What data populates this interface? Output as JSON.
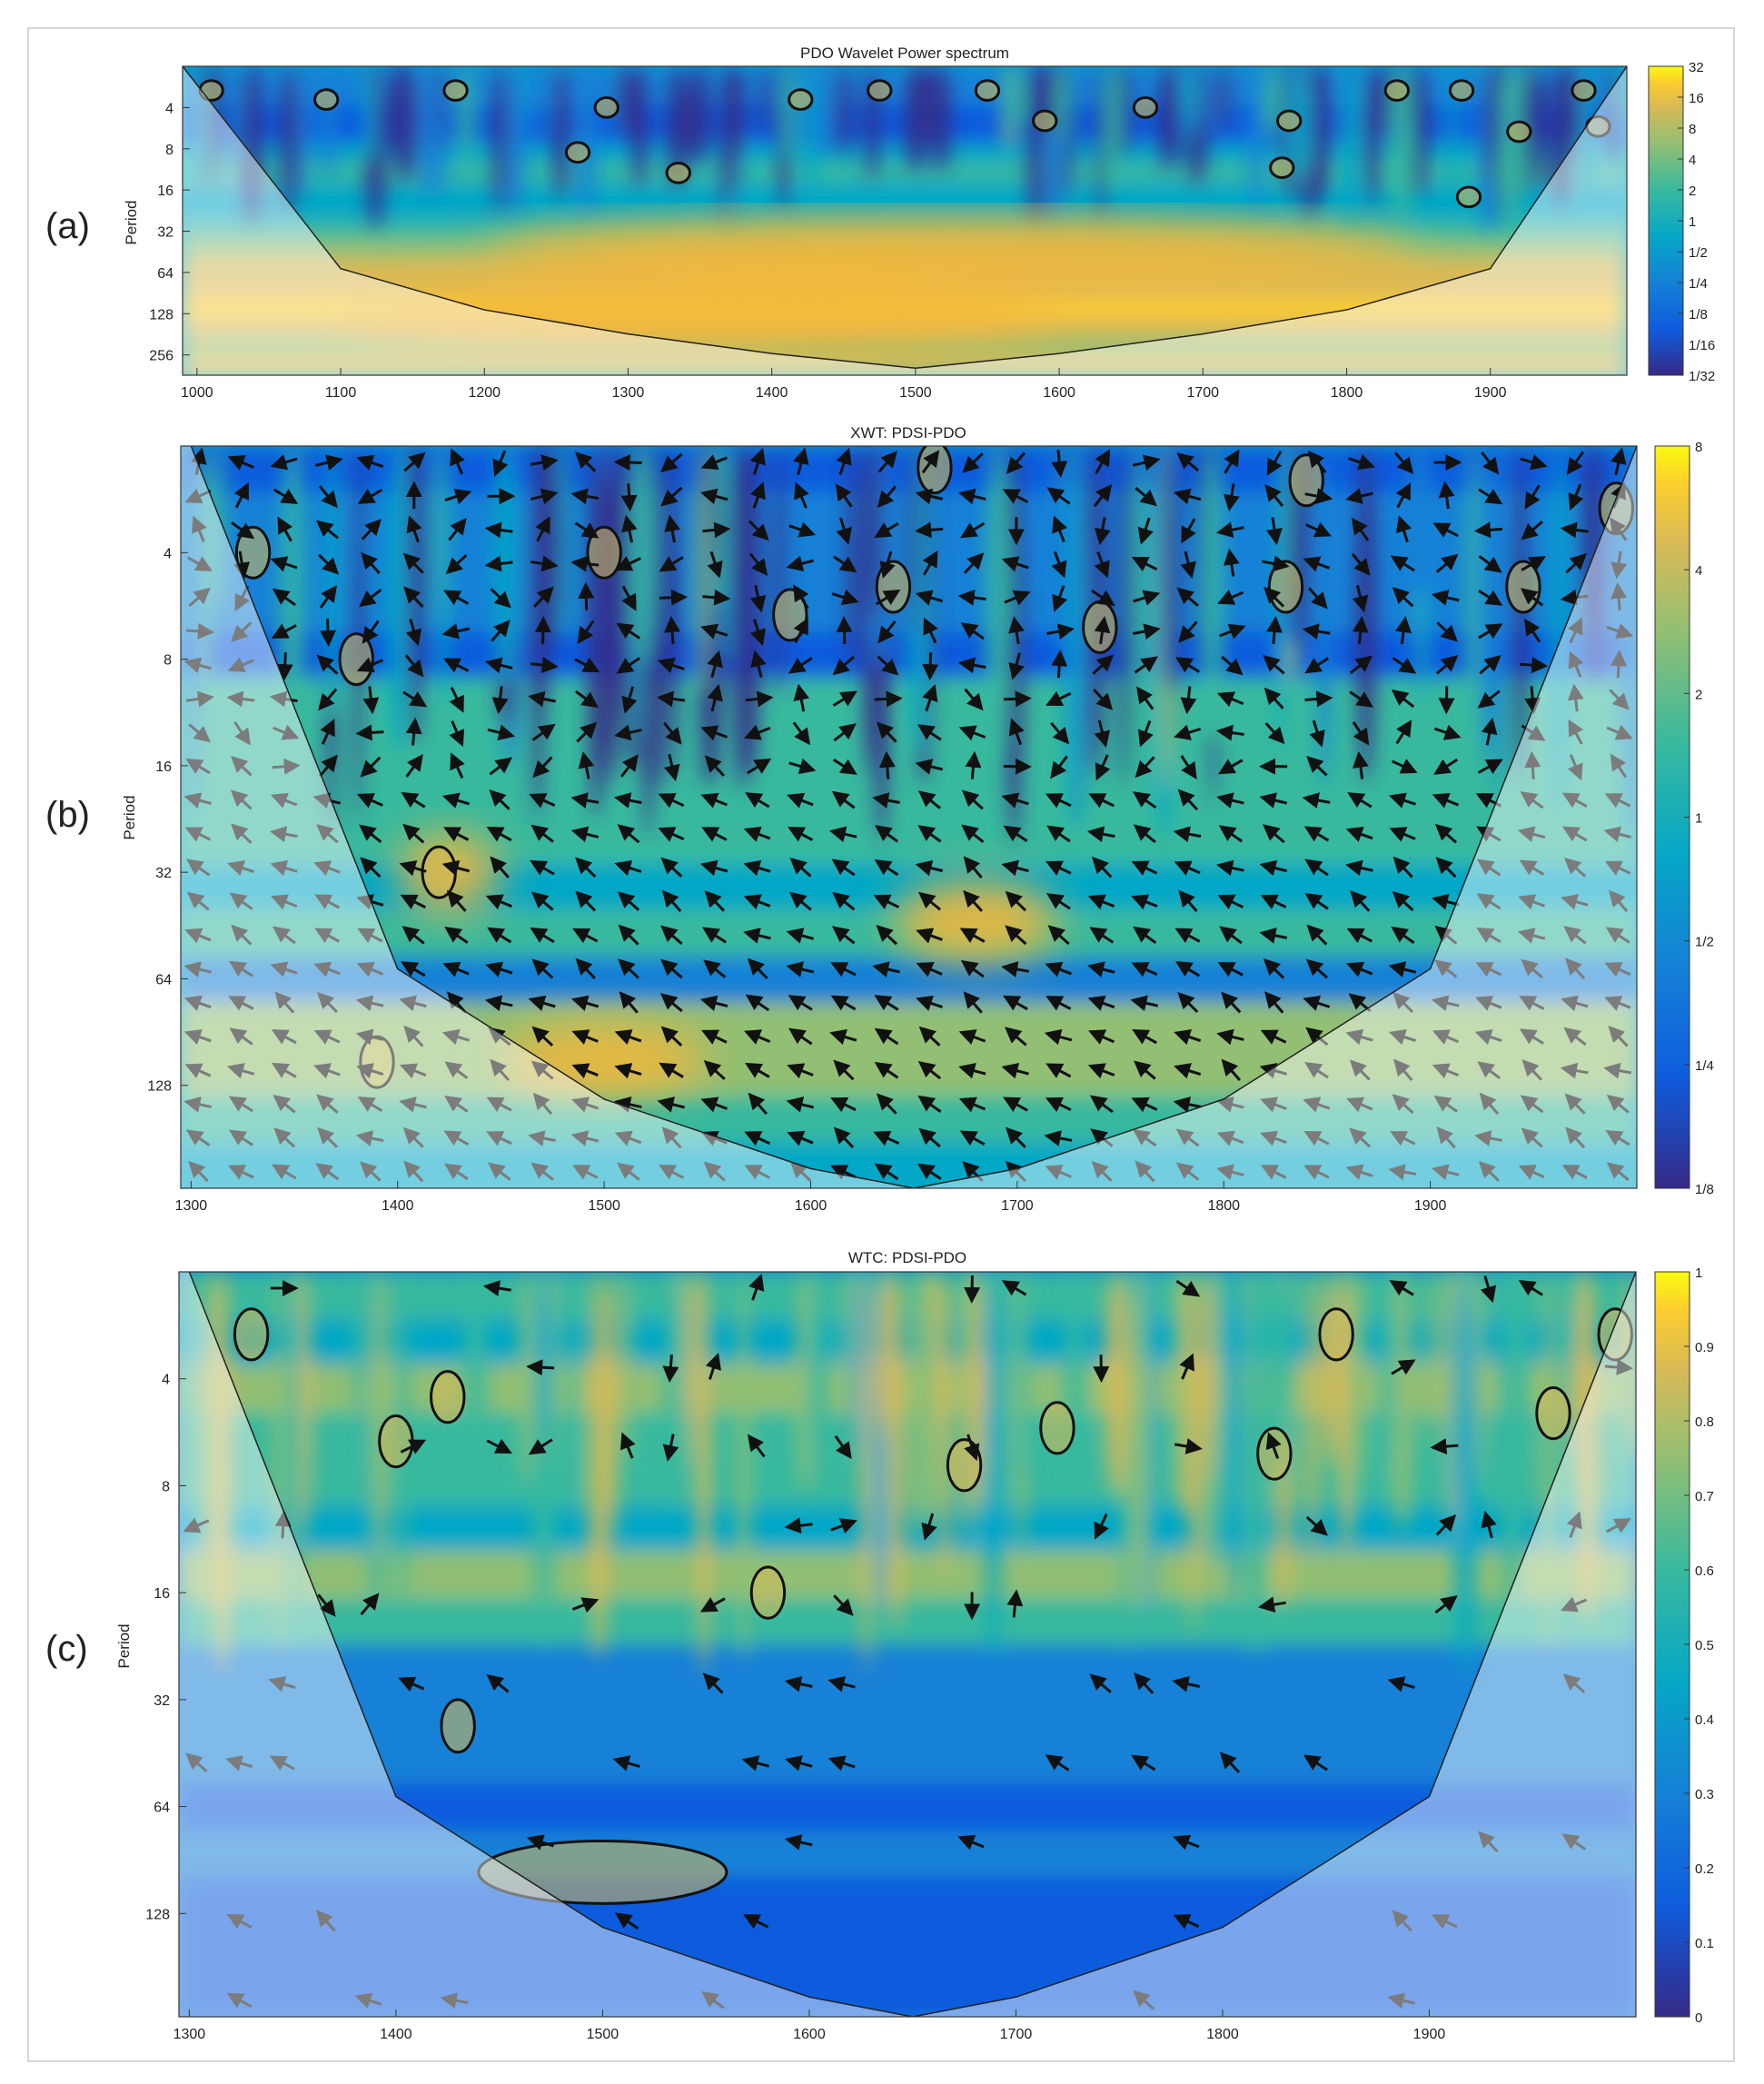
{
  "chart_data": [
    {
      "type": "heatmap",
      "panel_label": "(a)",
      "title": "PDO Wavelet Power spectrum",
      "xlabel": "",
      "ylabel": "Period",
      "xlim": [
        990,
        1995
      ],
      "xticks": [
        1000,
        1100,
        1200,
        1300,
        1400,
        1500,
        1600,
        1700,
        1800,
        1900
      ],
      "ylim": [
        2,
        360
      ],
      "yscale": "log2",
      "yticks": [
        4,
        8,
        16,
        32,
        64,
        128,
        256
      ],
      "colorbar": {
        "colormap": "parula",
        "scale": "log2",
        "ticks": [
          "32",
          "16",
          "8",
          "4",
          "2",
          "1",
          "1/2",
          "1/4",
          "1/8",
          "1/16",
          "1/32"
        ]
      },
      "cone_of_influence": {
        "x": [
          990,
          1100,
          1200,
          1300,
          1400,
          1500,
          1600,
          1700,
          1800,
          1900,
          1995
        ],
        "period": [
          2,
          60,
          120,
          180,
          250,
          320,
          250,
          180,
          120,
          60,
          2
        ]
      },
      "high_power_bands": [
        {
          "x": [
            1100,
            1600
          ],
          "period": [
            90,
            200
          ],
          "level": "8"
        },
        {
          "x": [
            1200,
            1850
          ],
          "period": [
            28,
            70
          ],
          "level": "4"
        }
      ],
      "significant_regions": [
        {
          "x": 1010,
          "period": 3
        },
        {
          "x": 1090,
          "period": 3.5
        },
        {
          "x": 1180,
          "period": 3
        },
        {
          "x": 1265,
          "period": 8.5
        },
        {
          "x": 1285,
          "period": 4
        },
        {
          "x": 1335,
          "period": 12
        },
        {
          "x": 1420,
          "period": 3.5
        },
        {
          "x": 1475,
          "period": 3
        },
        {
          "x": 1550,
          "period": 3
        },
        {
          "x": 1590,
          "period": 5
        },
        {
          "x": 1660,
          "period": 4
        },
        {
          "x": 1760,
          "period": 5
        },
        {
          "x": 1835,
          "period": 3
        },
        {
          "x": 1880,
          "period": 3
        },
        {
          "x": 1920,
          "period": 6
        },
        {
          "x": 1965,
          "period": 3
        },
        {
          "x": 1975,
          "period": 5.5
        },
        {
          "x": 1885,
          "period": 18
        },
        {
          "x": 1755,
          "period": 11
        }
      ]
    },
    {
      "type": "heatmap",
      "panel_label": "(b)",
      "title": "XWT: PDSI-PDO",
      "xlabel": "",
      "ylabel": "Period",
      "xlim": [
        1295,
        2000
      ],
      "xticks": [
        1300,
        1400,
        1500,
        1600,
        1700,
        1800,
        1900
      ],
      "ylim": [
        2,
        250
      ],
      "yscale": "log2",
      "yticks": [
        4,
        8,
        16,
        32,
        64,
        128
      ],
      "colorbar": {
        "colormap": "parula",
        "scale": "log2",
        "ticks": [
          "8",
          "4",
          "2",
          "1",
          "1/2",
          "1/4",
          "1/8"
        ]
      },
      "cone_of_influence": {
        "x": [
          1300,
          1400,
          1500,
          1600,
          1650,
          1700,
          1800,
          1900,
          2000
        ],
        "period": [
          2,
          60,
          140,
          220,
          250,
          220,
          140,
          60,
          2
        ]
      },
      "high_power_regions": [
        {
          "x": [
            1400,
            1450
          ],
          "period": [
            26,
            40
          ],
          "level": "4"
        },
        {
          "x": [
            1450,
            1550
          ],
          "period": [
            90,
            130
          ],
          "level": "4"
        },
        {
          "x": [
            1640,
            1720
          ],
          "period": [
            35,
            55
          ],
          "level": "4"
        }
      ],
      "significant_regions": [
        {
          "x": 1380,
          "period": 8
        },
        {
          "x": 1420,
          "period": 32
        },
        {
          "x": 1390,
          "period": 110
        },
        {
          "x": 1330,
          "period": 4
        },
        {
          "x": 1500,
          "period": 4
        },
        {
          "x": 1590,
          "period": 6
        },
        {
          "x": 1640,
          "period": 5
        },
        {
          "x": 1740,
          "period": 6.5
        },
        {
          "x": 1830,
          "period": 5
        },
        {
          "x": 1945,
          "period": 5
        },
        {
          "x": 1990,
          "period": 3
        },
        {
          "x": 1660,
          "period": 2.3
        },
        {
          "x": 1840,
          "period": 2.5
        }
      ],
      "phase_arrows": "dominant left/down-left (anti-phase) at periods 32-128; mixed direction at short periods"
    },
    {
      "type": "heatmap",
      "panel_label": "(c)",
      "title": "WTC: PDSI-PDO",
      "xlabel": "",
      "ylabel": "Period",
      "xlim": [
        1295,
        2000
      ],
      "xticks": [
        1300,
        1400,
        1500,
        1600,
        1700,
        1800,
        1900
      ],
      "ylim": [
        2,
        250
      ],
      "yscale": "log2",
      "yticks": [
        4,
        8,
        16,
        32,
        64,
        128
      ],
      "colorbar": {
        "colormap": "parula",
        "scale": "linear",
        "range": [
          0,
          1
        ],
        "ticks": [
          "1",
          "0.9",
          "0.8",
          "0.7",
          "0.6",
          "0.5",
          "0.4",
          "0.3",
          "0.2",
          "0.1",
          "0"
        ]
      },
      "cone_of_influence": {
        "x": [
          1300,
          1400,
          1500,
          1600,
          1650,
          1700,
          1800,
          1900,
          2000
        ],
        "period": [
          2,
          60,
          140,
          220,
          250,
          220,
          140,
          60,
          2
        ]
      },
      "significant_regions": [
        {
          "x": 1430,
          "period": [
            32,
            45
          ],
          "coherence": 0.8
        },
        {
          "x": [
            1440,
            1560
          ],
          "period": [
            80,
            120
          ],
          "coherence": 0.85
        },
        {
          "x": 1580,
          "period": 16,
          "coherence": 0.8
        },
        {
          "x": 1330,
          "period": 3
        },
        {
          "x": 1425,
          "period": 4.5
        },
        {
          "x": 1400,
          "period": 6
        },
        {
          "x": 1720,
          "period": 5.5
        },
        {
          "x": 1675,
          "period": 7
        },
        {
          "x": 1825,
          "period": 6.5
        },
        {
          "x": 1960,
          "period": 5
        },
        {
          "x": 1855,
          "period": 3
        },
        {
          "x": 1990,
          "period": 3
        }
      ],
      "phase_arrows": "left/down-left (anti-phase) in the 64-128 period band 1430-1620; left at period 32 near 1430"
    }
  ]
}
